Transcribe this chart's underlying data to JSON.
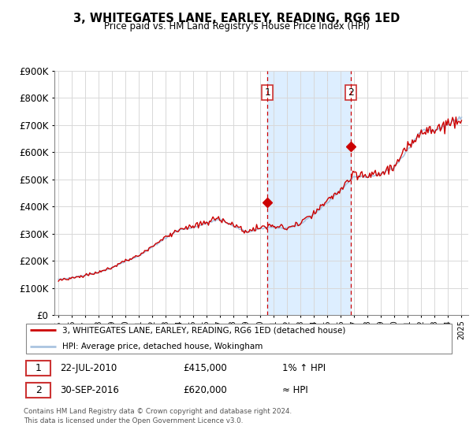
{
  "title": "3, WHITEGATES LANE, EARLEY, READING, RG6 1ED",
  "subtitle": "Price paid vs. HM Land Registry's House Price Index (HPI)",
  "legend_line1": "3, WHITEGATES LANE, EARLEY, READING, RG6 1ED (detached house)",
  "legend_line2": "HPI: Average price, detached house, Wokingham",
  "annotation1_label": "1",
  "annotation1_date": "22-JUL-2010",
  "annotation1_price": "£415,000",
  "annotation1_hpi": "1% ↑ HPI",
  "annotation2_label": "2",
  "annotation2_date": "30-SEP-2016",
  "annotation2_price": "£620,000",
  "annotation2_hpi": "≈ HPI",
  "footer": "Contains HM Land Registry data © Crown copyright and database right 2024.\nThis data is licensed under the Open Government Licence v3.0.",
  "background_color": "#ffffff",
  "grid_color": "#d8d8d8",
  "hpi_color": "#aac4e0",
  "price_color": "#cc0000",
  "marker_color": "#cc0000",
  "dashed_line_color": "#cc0000",
  "shade_color": "#ddeeff",
  "ylim": [
    0,
    900000
  ],
  "yticks": [
    0,
    100000,
    200000,
    300000,
    400000,
    500000,
    600000,
    700000,
    800000,
    900000
  ],
  "sale1_year": 2010.55,
  "sale1_value": 415000,
  "sale2_year": 2016.75,
  "sale2_value": 620000,
  "shade_x1": 2010.55,
  "shade_x2": 2016.75,
  "xtick_years": [
    1995,
    1996,
    1997,
    1998,
    1999,
    2000,
    2001,
    2002,
    2003,
    2004,
    2005,
    2006,
    2007,
    2008,
    2009,
    2010,
    2011,
    2012,
    2013,
    2014,
    2015,
    2016,
    2017,
    2018,
    2019,
    2020,
    2021,
    2022,
    2023,
    2024,
    2025
  ]
}
